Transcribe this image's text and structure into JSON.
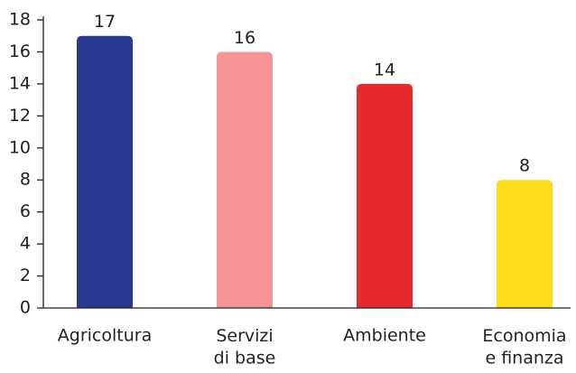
{
  "chart_data": {
    "type": "bar",
    "categories": [
      "Agricoltura",
      "Servizi\ndi base",
      "Ambiente",
      "Economia\ne finanza"
    ],
    "values": [
      17,
      16,
      14,
      8
    ],
    "colors": [
      "#2a3990",
      "#f49497",
      "#e52b30",
      "#fddc1b"
    ],
    "ylim": [
      0,
      18
    ],
    "yticks": [
      0,
      2,
      4,
      6,
      8,
      10,
      12,
      14,
      16,
      18
    ],
    "grid": false
  }
}
